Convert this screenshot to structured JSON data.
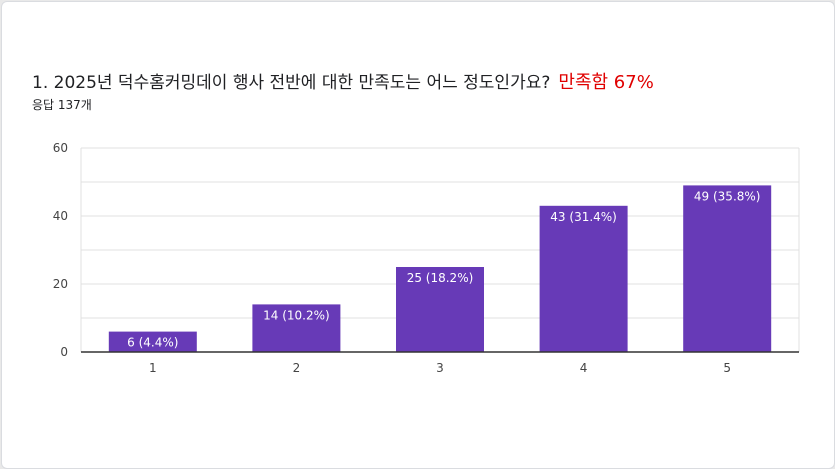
{
  "question": {
    "title": "1. 2025년 덕수홈커밍데이 행사 전반에 대한 만족도는 어느 정도인가요?",
    "highlight": "만족함 67%",
    "responses": "응답 137개"
  },
  "colors": {
    "bar": "#673ab7",
    "grid": "#e0e0e0",
    "axis": "#333333",
    "highlight": "#e00000"
  },
  "chart_data": {
    "type": "bar",
    "categories": [
      "1",
      "2",
      "3",
      "4",
      "5"
    ],
    "values": [
      6,
      14,
      25,
      43,
      49
    ],
    "data_labels": [
      "6 (4.4%)",
      "14 (10.2%)",
      "25 (18.2%)",
      "43 (31.4%)",
      "49 (35.8%)"
    ],
    "y_ticks": [
      0,
      20,
      40,
      60
    ],
    "ylim": [
      0,
      60
    ],
    "grid": true,
    "legend": "none"
  }
}
